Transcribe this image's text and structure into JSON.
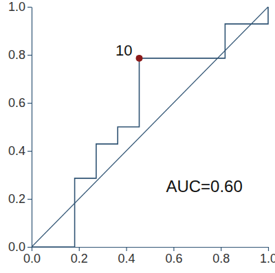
{
  "chart_data": {
    "type": "line",
    "series": [
      {
        "type": "line",
        "line_style": "step",
        "color": "#2f5373",
        "x": [
          0,
          0.182,
          0.273,
          0.364,
          0.455,
          0.818,
          1.0
        ],
        "values": [
          0,
          0.286,
          0.429,
          0.5,
          0.786,
          0.929,
          1.0
        ]
      },
      {
        "type": "line",
        "line_style": "solid",
        "color": "#2f5373",
        "x": [
          0,
          1.0
        ],
        "values": [
          0,
          1.0
        ]
      }
    ],
    "highlight": {
      "x": 0.455,
      "y": 0.786,
      "label": "10",
      "color": "#8b1a1a"
    },
    "annotations": [
      "AUC=0.60"
    ],
    "xlim": [
      0,
      1.0
    ],
    "ylim": [
      0,
      1.0
    ],
    "xticks": [
      {
        "value": 0,
        "label": "0.0"
      },
      0.2,
      0.4,
      0.6,
      0.8,
      {
        "value": 1.0,
        "label": "1.0"
      }
    ],
    "yticks": [
      {
        "value": 0,
        "label": "0.0"
      },
      0.2,
      0.4,
      0.6,
      0.8,
      {
        "value": 1.0,
        "label": "1.0"
      }
    ],
    "grid": false
  }
}
